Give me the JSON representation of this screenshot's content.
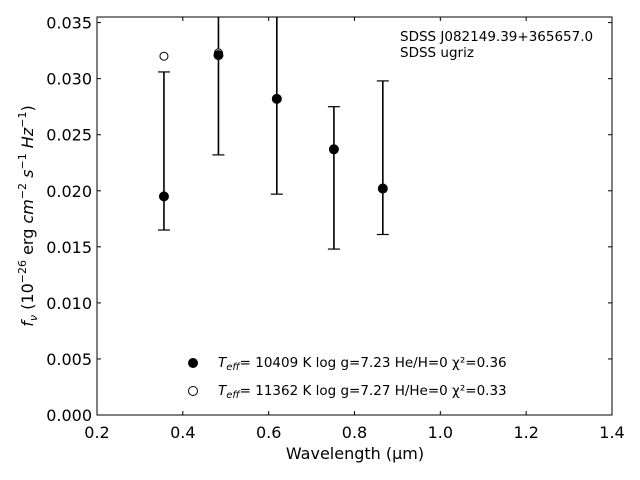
{
  "chart_data": {
    "type": "scatter",
    "xlabel": "Wavelength (μm)",
    "ylabel": "fν (10⁻²⁶ erg cm⁻² s⁻¹ Hz⁻¹)",
    "xlim": [
      0.2,
      1.4
    ],
    "ylim": [
      0.0,
      0.0355
    ],
    "xticks": [
      0.2,
      0.4,
      0.6,
      0.8,
      1.0,
      1.2,
      1.4
    ],
    "xtick_labels": [
      "0.2",
      "0.4",
      "0.6",
      "0.8",
      "1.0",
      "1.2",
      "1.4"
    ],
    "yticks": [
      0.0,
      0.005,
      0.01,
      0.015,
      0.02,
      0.025,
      0.03,
      0.035
    ],
    "ytick_labels": [
      "0.000",
      "0.005",
      "0.010",
      "0.015",
      "0.020",
      "0.025",
      "0.030",
      "0.035"
    ],
    "grid": false,
    "annotations": [
      "SDSS J082149.39+365657.0",
      "SDSS ugriz"
    ],
    "observed": {
      "marker": "filled-circle",
      "points": [
        {
          "x": 0.356,
          "y": 0.0195,
          "ylo": 0.0165,
          "yhi": 0.0306
        },
        {
          "x": 0.483,
          "y": 0.0321,
          "ylo": 0.0232,
          "yhi": 0.0355
        },
        {
          "x": 0.619,
          "y": 0.0282,
          "ylo": 0.0197,
          "yhi": 0.0355
        },
        {
          "x": 0.752,
          "y": 0.0237,
          "ylo": 0.0148,
          "yhi": 0.0275
        },
        {
          "x": 0.866,
          "y": 0.0202,
          "ylo": 0.0161,
          "yhi": 0.0298
        }
      ]
    },
    "series": [
      {
        "marker": "filled-circle",
        "legend": "= 10409 K  log g=7.23  He/H=0  χ²=0.36",
        "points": []
      },
      {
        "marker": "open-circle",
        "legend": "= 11362 K  log g=7.27  H/He=0  χ²=0.33",
        "points": [
          {
            "x": 0.356,
            "y": 0.032
          },
          {
            "x": 0.483,
            "y": 0.0323
          }
        ]
      }
    ],
    "legend_placement": "bottom-center"
  }
}
